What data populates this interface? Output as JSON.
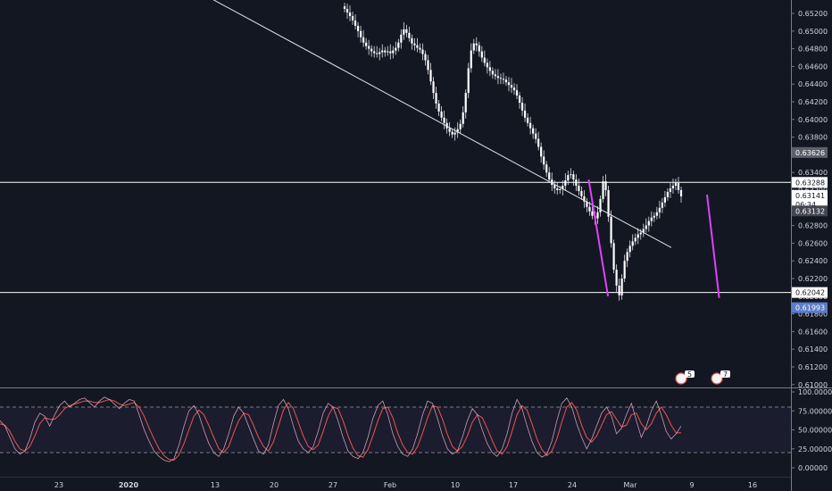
{
  "chart_data": [
    {
      "type": "candlestick",
      "title": "",
      "price_axis": {
        "ylim": [
          0.6095,
          0.653
        ],
        "ticks": [
          "0.65200",
          "0.65000",
          "0.64800",
          "0.64600",
          "0.64400",
          "0.64200",
          "0.64000",
          "0.63800",
          "0.63600",
          "0.63400",
          "0.63200",
          "0.63000",
          "0.62800",
          "0.62600",
          "0.62400",
          "0.62200",
          "0.62000",
          "0.61800",
          "0.61600",
          "0.61400",
          "0.61200",
          "0.61000"
        ]
      },
      "time_axis": {
        "ticks": [
          "23",
          "2020",
          "13",
          "20",
          "27",
          "Feb",
          "10",
          "17",
          "24",
          "Mar",
          "9",
          "16"
        ]
      },
      "horizontal_levels": [
        {
          "price": 0.63288,
          "label": "0.63288"
        },
        {
          "price": 0.62042,
          "label": "0.62042"
        }
      ],
      "price_labels": [
        {
          "text": "0.63626",
          "price": 0.63626,
          "style": "gray"
        },
        {
          "text": "0.63288",
          "price": 0.63288,
          "style": "white"
        },
        {
          "text": "0.63141",
          "price": 0.63141,
          "style": "white"
        },
        {
          "text": "06:34",
          "price": 0.6304,
          "style": "white"
        },
        {
          "text": "0.63132",
          "price": 0.62965,
          "style": "dark"
        },
        {
          "text": "0.62042",
          "price": 0.62042,
          "style": "white"
        },
        {
          "text": "0.61993",
          "price": 0.6187,
          "style": "blue"
        }
      ],
      "trendline": {
        "start": [
          5,
          0.6552
        ],
        "end": [
          29,
          0.6255
        ]
      },
      "magenta_lines": [
        {
          "start": [
            20.2,
            0.6332
          ],
          "end": [
            21.2,
            0.62
          ]
        },
        {
          "start": [
            26.1,
            0.6315
          ],
          "end": [
            26.7,
            0.6198
          ]
        }
      ],
      "position_box": {
        "start": 26.3,
        "end": 29.7,
        "stop": 0.63626,
        "entry": 0.63141,
        "target": 0.61993
      },
      "event_badges": [
        "5",
        "7"
      ],
      "candles_close": [
        0.6525,
        0.6521,
        0.6517,
        0.6512,
        0.6506,
        0.65,
        0.6493,
        0.6487,
        0.6483,
        0.648,
        0.6477,
        0.6475,
        0.6474,
        0.6476,
        0.6478,
        0.6476,
        0.6477,
        0.6475,
        0.6478,
        0.6481,
        0.6487,
        0.6496,
        0.6502,
        0.6498,
        0.6492,
        0.6486,
        0.6484,
        0.6481,
        0.6479,
        0.6474,
        0.6467,
        0.6456,
        0.6443,
        0.643,
        0.6418,
        0.6409,
        0.6402,
        0.6396,
        0.639,
        0.6386,
        0.6383,
        0.6385,
        0.6389,
        0.6395,
        0.6408,
        0.643,
        0.6458,
        0.6478,
        0.6486,
        0.6484,
        0.6477,
        0.647,
        0.6464,
        0.6459,
        0.6455,
        0.6451,
        0.6449,
        0.6447,
        0.6446,
        0.6445,
        0.6442,
        0.6439,
        0.6436,
        0.6433,
        0.6427,
        0.6419,
        0.641,
        0.6402,
        0.6396,
        0.639,
        0.6384,
        0.6378,
        0.6369,
        0.6358,
        0.6349,
        0.634,
        0.6332,
        0.6326,
        0.6322,
        0.632,
        0.6321,
        0.6325,
        0.6331,
        0.6337,
        0.6338,
        0.6332,
        0.6325,
        0.6319,
        0.6313,
        0.6307,
        0.6301,
        0.6296,
        0.6291,
        0.6288,
        0.6295,
        0.631,
        0.633,
        0.632,
        0.629,
        0.626,
        0.623,
        0.6212,
        0.6201,
        0.622,
        0.624,
        0.625,
        0.6257,
        0.6262,
        0.6266,
        0.627,
        0.6272,
        0.6276,
        0.628,
        0.6285,
        0.6289,
        0.6291,
        0.6295,
        0.63,
        0.6306,
        0.6312,
        0.6318,
        0.6322,
        0.6325,
        0.6328,
        0.632,
        0.6313
      ],
      "oscillator": {
        "ylim": [
          -5,
          105
        ],
        "ticks": [
          "100.00000",
          "75.00000",
          "50.00000",
          "25.00000",
          "0.00000"
        ],
        "tick_values": [
          100,
          75,
          50,
          25,
          0
        ],
        "bands": [
          20,
          80
        ],
        "k": [
          62,
          55,
          40,
          25,
          18,
          22,
          38,
          60,
          72,
          68,
          55,
          70,
          82,
          88,
          80,
          85,
          90,
          92,
          86,
          80,
          88,
          93,
          90,
          84,
          78,
          85,
          90,
          88,
          70,
          50,
          35,
          22,
          15,
          10,
          8,
          12,
          30,
          55,
          75,
          82,
          70,
          50,
          32,
          20,
          15,
          25,
          45,
          68,
          80,
          72,
          55,
          38,
          22,
          18,
          30,
          58,
          82,
          90,
          78,
          55,
          35,
          25,
          20,
          28,
          48,
          72,
          85,
          80,
          62,
          40,
          22,
          15,
          12,
          20,
          40,
          65,
          82,
          88,
          70,
          45,
          28,
          18,
          15,
          25,
          45,
          70,
          88,
          85,
          65,
          42,
          25,
          18,
          22,
          40,
          62,
          78,
          70,
          50,
          32,
          20,
          15,
          25,
          45,
          72,
          90,
          78,
          55,
          35,
          20,
          14,
          18,
          35,
          62,
          85,
          92,
          80,
          58,
          40,
          25,
          38,
          55,
          72,
          80,
          68,
          45,
          52,
          70,
          85,
          62,
          40,
          55,
          75,
          88,
          70,
          48,
          38,
          45,
          55
        ],
        "d": [
          58,
          56,
          48,
          35,
          25,
          22,
          28,
          42,
          58,
          66,
          64,
          64,
          70,
          78,
          82,
          84,
          86,
          88,
          88,
          86,
          86,
          88,
          90,
          88,
          84,
          82,
          84,
          86,
          80,
          68,
          52,
          38,
          25,
          16,
          11,
          10,
          17,
          32,
          50,
          68,
          76,
          70,
          56,
          40,
          25,
          20,
          28,
          46,
          62,
          72,
          70,
          56,
          40,
          28,
          22,
          34,
          55,
          76,
          86,
          78,
          60,
          42,
          28,
          24,
          30,
          48,
          68,
          80,
          78,
          62,
          42,
          26,
          16,
          14,
          24,
          42,
          62,
          78,
          80,
          66,
          46,
          30,
          20,
          18,
          28,
          46,
          66,
          82,
          80,
          64,
          44,
          28,
          22,
          28,
          42,
          60,
          70,
          66,
          52,
          36,
          22,
          18,
          28,
          48,
          70,
          82,
          76,
          58,
          38,
          24,
          16,
          22,
          38,
          60,
          80,
          86,
          76,
          56,
          40,
          34,
          42,
          56,
          70,
          74,
          64,
          54,
          56,
          70,
          72,
          58,
          50,
          58,
          72,
          80,
          70,
          56,
          46,
          46
        ]
      }
    }
  ]
}
